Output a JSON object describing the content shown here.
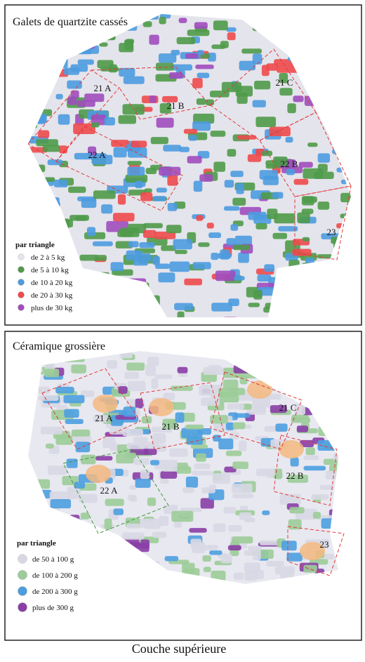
{
  "panels": [
    {
      "title": "Galets de quartzite cassés",
      "zones": [
        "21 A",
        "21 B",
        "21 C",
        "22 A",
        "22 B",
        "23"
      ],
      "legend": {
        "title": "par triangle",
        "items": [
          {
            "label": "de 2 à 5 kg",
            "color": "#e4e4ec"
          },
          {
            "label": "de 5 à 10 kg",
            "color": "#4f9a4a"
          },
          {
            "label": "de 10 à 20 kg",
            "color": "#4d9be0"
          },
          {
            "label": "de 20 à 30 kg",
            "color": "#ee4a4c"
          },
          {
            "label": "plus de 30 kg",
            "color": "#a04cbe"
          }
        ]
      }
    },
    {
      "title": "Céramique grossière",
      "zones": [
        "21 A",
        "21 B",
        "21 C",
        "22 A",
        "22 B",
        "23"
      ],
      "legend": {
        "title": "par triangle",
        "items": [
          {
            "label": "de 50 à 100 g",
            "color": "#d8d8e4"
          },
          {
            "label": "de 100 à 200 g",
            "color": "#9ccc98"
          },
          {
            "label": "de 200 à 300 g",
            "color": "#4c9ee0"
          },
          {
            "label": "plus de 300 g",
            "color": "#8a3ea6"
          }
        ]
      }
    }
  ],
  "caption": "Couche supérieure"
}
